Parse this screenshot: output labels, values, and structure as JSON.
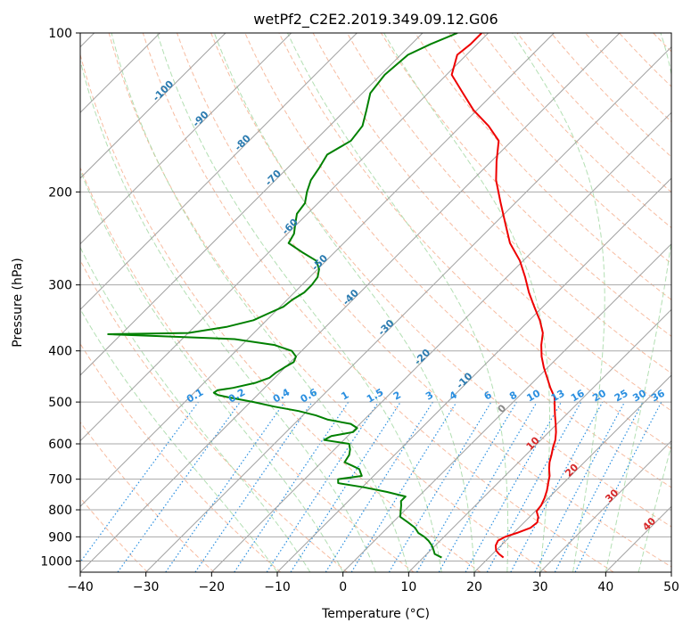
{
  "chart_data": {
    "type": "line",
    "title": "wetPf2_C2E2.2019.349.09.12.G06",
    "xlabel": "Temperature (°C)",
    "ylabel": "Pressure (hPa)",
    "xlim": [
      -40,
      50
    ],
    "ylim": [
      1050,
      100
    ],
    "y_scale": "log",
    "grid": true,
    "x_ticks": [
      -40,
      -30,
      -20,
      -10,
      0,
      10,
      20,
      30,
      40,
      50
    ],
    "y_ticks": [
      100,
      200,
      300,
      400,
      500,
      600,
      700,
      800,
      900,
      1000
    ],
    "skew": 45,
    "colors": {
      "temperature": "#ee0000",
      "dewpoint": "#008000",
      "dry_adiabat": "#f4a582",
      "moist_adiabat": "#a6d9a6",
      "mixing_ratio": "#2a8fe0",
      "isotherm": "#a0a0a0",
      "isotherm_label": "#2b7bb0",
      "warm_label": "#d62728"
    },
    "series": [
      {
        "key": "temperature",
        "pressure": [
          985,
          970,
          955,
          935,
          915,
          900,
          885,
          865,
          845,
          825,
          805,
          785,
          760,
          735,
          710,
          690,
          670,
          650,
          630,
          610,
          590,
          570,
          550,
          530,
          510,
          490,
          470,
          450,
          430,
          410,
          390,
          370,
          350,
          330,
          310,
          290,
          270,
          250,
          230,
          210,
          190,
          175,
          160,
          150,
          140,
          130,
          120,
          110,
          105,
          100
        ],
        "temperature": [
          22.2,
          21.0,
          20.0,
          19.2,
          18.8,
          19.3,
          20.5,
          21.8,
          22.0,
          21.3,
          20.2,
          20.0,
          19.4,
          18.6,
          17.6,
          16.8,
          15.7,
          14.7,
          13.9,
          13.0,
          12.2,
          11.1,
          9.8,
          8.4,
          7.0,
          5.6,
          3.5,
          1.5,
          -0.6,
          -2.6,
          -4.4,
          -6.0,
          -8.4,
          -11.3,
          -14.3,
          -17.2,
          -20.5,
          -24.7,
          -28.3,
          -32.2,
          -36.4,
          -39.2,
          -42.0,
          -45.8,
          -50.5,
          -54.7,
          -59.2,
          -61.4,
          -61.0,
          -61.0
        ]
      },
      {
        "key": "dewpoint",
        "pressure": [
          985,
          970,
          955,
          935,
          915,
          900,
          885,
          865,
          845,
          825,
          805,
          785,
          770,
          755,
          740,
          725,
          712,
          700,
          690,
          680,
          670,
          660,
          650,
          640,
          630,
          615,
          600,
          590,
          580,
          570,
          560,
          550,
          540,
          530,
          520,
          510,
          500,
          490,
          485,
          480,
          475,
          470,
          460,
          450,
          440,
          430,
          420,
          410,
          400,
          390,
          380,
          375,
          372,
          370,
          360,
          350,
          340,
          330,
          320,
          310,
          300,
          290,
          280,
          270,
          260,
          250,
          240,
          230,
          220,
          210,
          200,
          190,
          180,
          170,
          160,
          150,
          140,
          130,
          120,
          110,
          105,
          100
        ],
        "temperature": [
          12.8,
          11.2,
          10.5,
          9.5,
          8.2,
          7.0,
          5.5,
          4.2,
          2.3,
          0.3,
          -0.5,
          -1.3,
          -2.0,
          -2.0,
          -5.5,
          -9.8,
          -14.3,
          -14.9,
          -11.8,
          -12.5,
          -13.2,
          -14.8,
          -16.5,
          -16.7,
          -16.9,
          -17.6,
          -18.6,
          -23.0,
          -22.5,
          -19.8,
          -19.8,
          -21.4,
          -25.5,
          -28.0,
          -31.3,
          -35.7,
          -39.5,
          -44.0,
          -46.0,
          -47.0,
          -46.8,
          -44.8,
          -42.2,
          -40.8,
          -40.6,
          -40.1,
          -39.5,
          -40.0,
          -41.5,
          -45.0,
          -52.0,
          -64.0,
          -72.0,
          -60.0,
          -55.0,
          -52.0,
          -50.8,
          -49.5,
          -49.2,
          -48.5,
          -48.5,
          -48.8,
          -49.8,
          -51.5,
          -55.0,
          -58.4,
          -59.0,
          -60.3,
          -61.6,
          -62.0,
          -63.4,
          -64.6,
          -65.2,
          -66.0,
          -64.5,
          -65.0,
          -66.8,
          -68.8,
          -69.4,
          -68.9,
          -67.1,
          -64.7
        ]
      }
    ],
    "isotherm_labels": [
      -100,
      -90,
      -80,
      -70,
      -60,
      -50,
      -40,
      -30,
      -20,
      -10,
      0,
      10,
      20,
      30,
      40
    ],
    "mixing_ratio_labels": [
      "0.1",
      "0.2",
      "0.4",
      "0.6",
      "1",
      "1.5",
      "2",
      "3",
      "4",
      "6",
      "8",
      "10",
      "13",
      "16",
      "20",
      "25",
      "30",
      "36"
    ]
  }
}
